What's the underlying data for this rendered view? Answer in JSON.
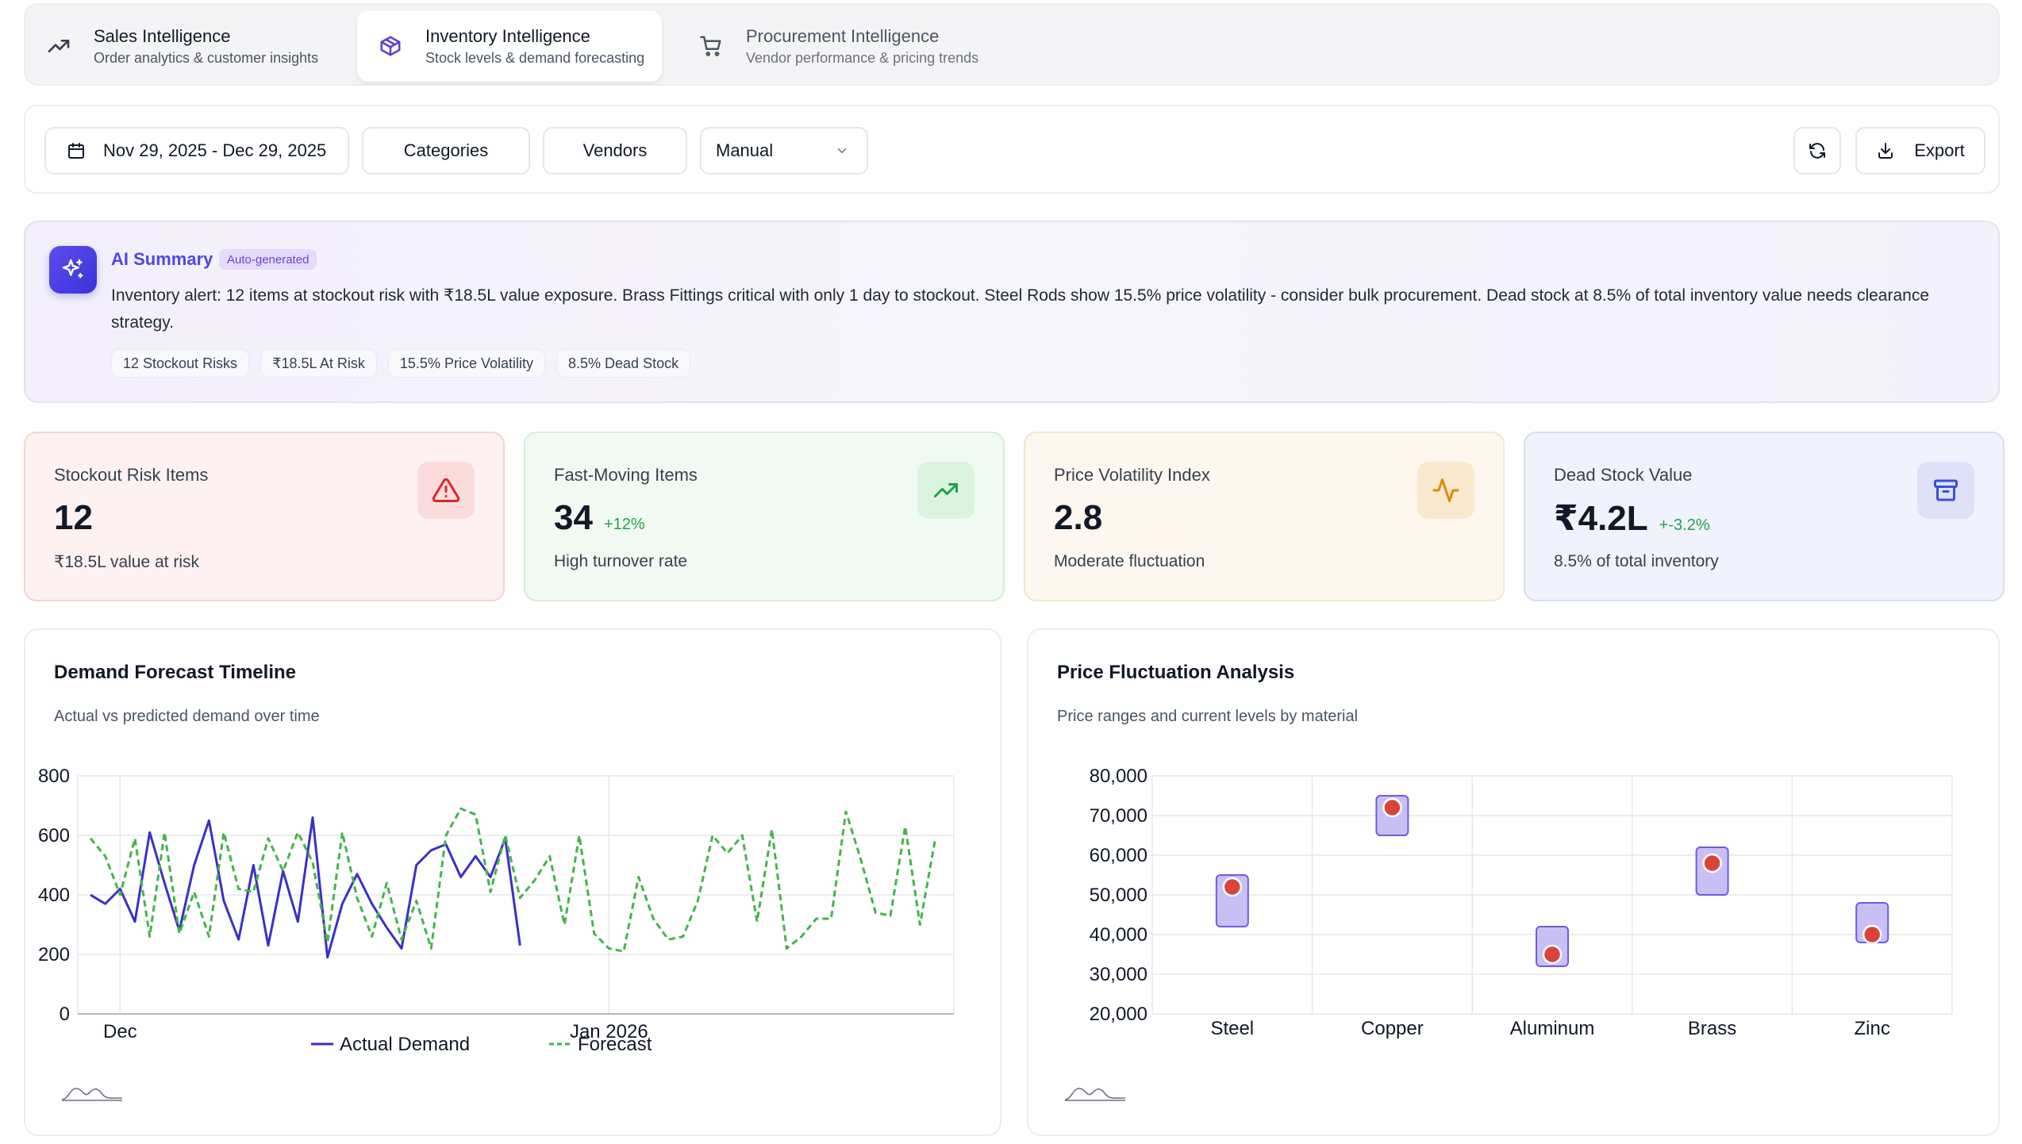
{
  "tabs": [
    {
      "title": "Sales Intelligence",
      "subtitle": "Order analytics & customer insights",
      "icon": "trend-up-icon"
    },
    {
      "title": "Inventory Intelligence",
      "subtitle": "Stock levels & demand forecasting",
      "icon": "package-icon"
    },
    {
      "title": "Procurement Intelligence",
      "subtitle": "Vendor performance & pricing trends",
      "icon": "cart-icon"
    }
  ],
  "filters": {
    "date_range": "Nov 29, 2025 - Dec 29, 2025",
    "categories": "Categories",
    "vendors": "Vendors",
    "mode": "Manual",
    "export": "Export"
  },
  "ai_summary": {
    "title": "AI Summary",
    "tag": "Auto-generated",
    "text": "Inventory alert: 12 items at stockout risk with ₹18.5L value exposure. Brass Fittings critical with only 1 day to stockout. Steel Rods show 15.5% price volatility - consider bulk procurement. Dead stock at 8.5% of total inventory value needs clearance strategy.",
    "chips": [
      "12 Stockout Risks",
      "₹18.5L At Risk",
      "15.5% Price Volatility",
      "8.5% Dead Stock"
    ]
  },
  "kpis": [
    {
      "label": "Stockout Risk Items",
      "value": "12",
      "delta": "",
      "sub": "₹18.5L value at risk",
      "bg": "#fdf1f1",
      "border": "#f5d4d4",
      "icon_bg": "#fadcdc",
      "icon_color": "#dc2626",
      "icon": "alert-triangle-icon"
    },
    {
      "label": "Fast-Moving Items",
      "value": "34",
      "delta": "+12%",
      "sub": "High turnover rate",
      "bg": "#f1faf2",
      "border": "#d5eed9",
      "icon_bg": "#dcf3e0",
      "icon_color": "#16a34a",
      "icon": "trend-up-icon"
    },
    {
      "label": "Price Volatility Index",
      "value": "2.8",
      "delta": "",
      "sub": "Moderate fluctuation",
      "bg": "#fdf7ef",
      "border": "#f6e5cf",
      "icon_bg": "#fbe9cf",
      "icon_color": "#e08a0b",
      "icon": "activity-icon"
    },
    {
      "label": "Dead Stock Value",
      "value": "₹4.2L",
      "delta": "+-3.2%",
      "sub": "8.5% of total inventory",
      "bg": "#f0f2fc",
      "border": "#d8ddf4",
      "icon_bg": "#dde2f8",
      "icon_color": "#3b4fd6",
      "icon": "archive-icon"
    }
  ],
  "demand_panel": {
    "title": "Demand Forecast Timeline",
    "subtitle": "Actual vs predicted demand over time"
  },
  "price_panel": {
    "title": "Price Fluctuation Analysis",
    "subtitle": "Price ranges and current levels by material"
  },
  "chart_data": [
    {
      "type": "line",
      "title": "",
      "x_tick_labels": [
        "Dec",
        "Jan 2026"
      ],
      "x_tick_positions_day_index": [
        2,
        35
      ],
      "ylim": [
        0,
        800
      ],
      "y_ticks": [
        0,
        200,
        400,
        600,
        800
      ],
      "legend": "bottom",
      "grid": true,
      "series": [
        {
          "name": "Actual Demand",
          "color": "#3b2fc9",
          "style": "solid",
          "values": [
            400,
            370,
            420,
            310,
            610,
            440,
            280,
            500,
            650,
            380,
            250,
            500,
            230,
            480,
            310,
            660,
            190,
            370,
            470,
            370,
            290,
            220,
            500,
            550,
            570,
            460,
            530,
            460,
            590,
            230
          ]
        },
        {
          "name": "Forecast",
          "color": "#43b54a",
          "style": "dashed",
          "values": [
            590,
            530,
            400,
            590,
            260,
            610,
            270,
            410,
            260,
            610,
            420,
            410,
            590,
            480,
            610,
            510,
            240,
            610,
            390,
            260,
            440,
            250,
            380,
            220,
            600,
            690,
            670,
            410,
            600,
            390,
            450,
            530,
            300,
            600,
            270,
            220,
            210,
            460,
            320,
            250,
            260,
            380,
            600,
            540,
            600,
            310,
            620,
            220,
            260,
            320,
            320,
            680,
            520,
            340,
            330,
            630,
            300,
            580
          ]
        }
      ]
    },
    {
      "type": "range-dot",
      "title": "",
      "categories": [
        "Steel",
        "Copper",
        "Aluminum",
        "Brass",
        "Zinc"
      ],
      "ylim": [
        20000,
        80000
      ],
      "y_ticks": [
        20000,
        30000,
        40000,
        50000,
        60000,
        70000,
        80000
      ],
      "y_tick_labels": [
        "20,000",
        "30,000",
        "40,000",
        "50,000",
        "60,000",
        "70,000",
        "80,000"
      ],
      "grid": true,
      "series": [
        {
          "name": "range_low",
          "values": [
            42000,
            65000,
            32000,
            50000,
            38000
          ]
        },
        {
          "name": "range_high",
          "values": [
            55000,
            75000,
            42000,
            62000,
            48000
          ]
        },
        {
          "name": "current",
          "values": [
            52000,
            72000,
            35000,
            58000,
            40000
          ]
        }
      ],
      "range_color": "#c9bff5",
      "range_border": "#6d5ce0",
      "dot_color": "#d7443a"
    }
  ]
}
